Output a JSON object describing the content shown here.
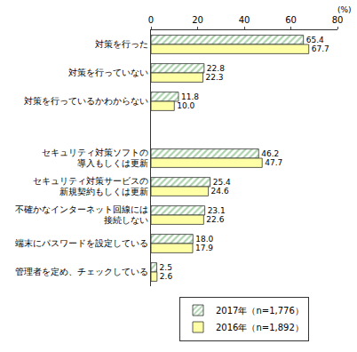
{
  "chart_data": {
    "type": "bar",
    "orientation": "horizontal",
    "x_label": "(%)",
    "categories": [
      "対策を行った",
      "対策を行っていない",
      "対策を行っているかわからない",
      null,
      "セキュリティ対策ソフトの\n導入もしくは更新",
      "セキュリティ対策サービスの\n新規契約もしくは更新",
      "不確かなインターネット回線には\n接続しない",
      "端末にパスワードを設定している",
      "管理者を定め、チェックしている"
    ],
    "series": [
      {
        "name": "2017年（n=1,776）",
        "color": "#5aa55a",
        "marker": "hatch",
        "values": [
          65.4,
          22.8,
          11.8,
          null,
          46.2,
          25.4,
          23.1,
          18.0,
          2.5
        ],
        "value_labels": [
          "65.4",
          "22.8",
          "11.8",
          null,
          "46.2",
          "25.4",
          "23.1",
          "18.0",
          "2.5"
        ]
      },
      {
        "name": "2016年（n=1,892）",
        "color": "#ffffa6",
        "marker": "solid",
        "values": [
          67.7,
          22.3,
          10.0,
          null,
          47.7,
          24.6,
          22.6,
          17.9,
          2.6
        ],
        "value_labels": [
          "67.7",
          "22.3",
          "10.0",
          null,
          "47.7",
          "24.6",
          "22.6",
          "17.9",
          "2.6"
        ]
      }
    ],
    "xlim": [
      0,
      80
    ],
    "xticks": [
      0,
      20,
      40,
      60,
      80
    ],
    "grid": false,
    "data_labels": true,
    "legend": "bottom"
  }
}
